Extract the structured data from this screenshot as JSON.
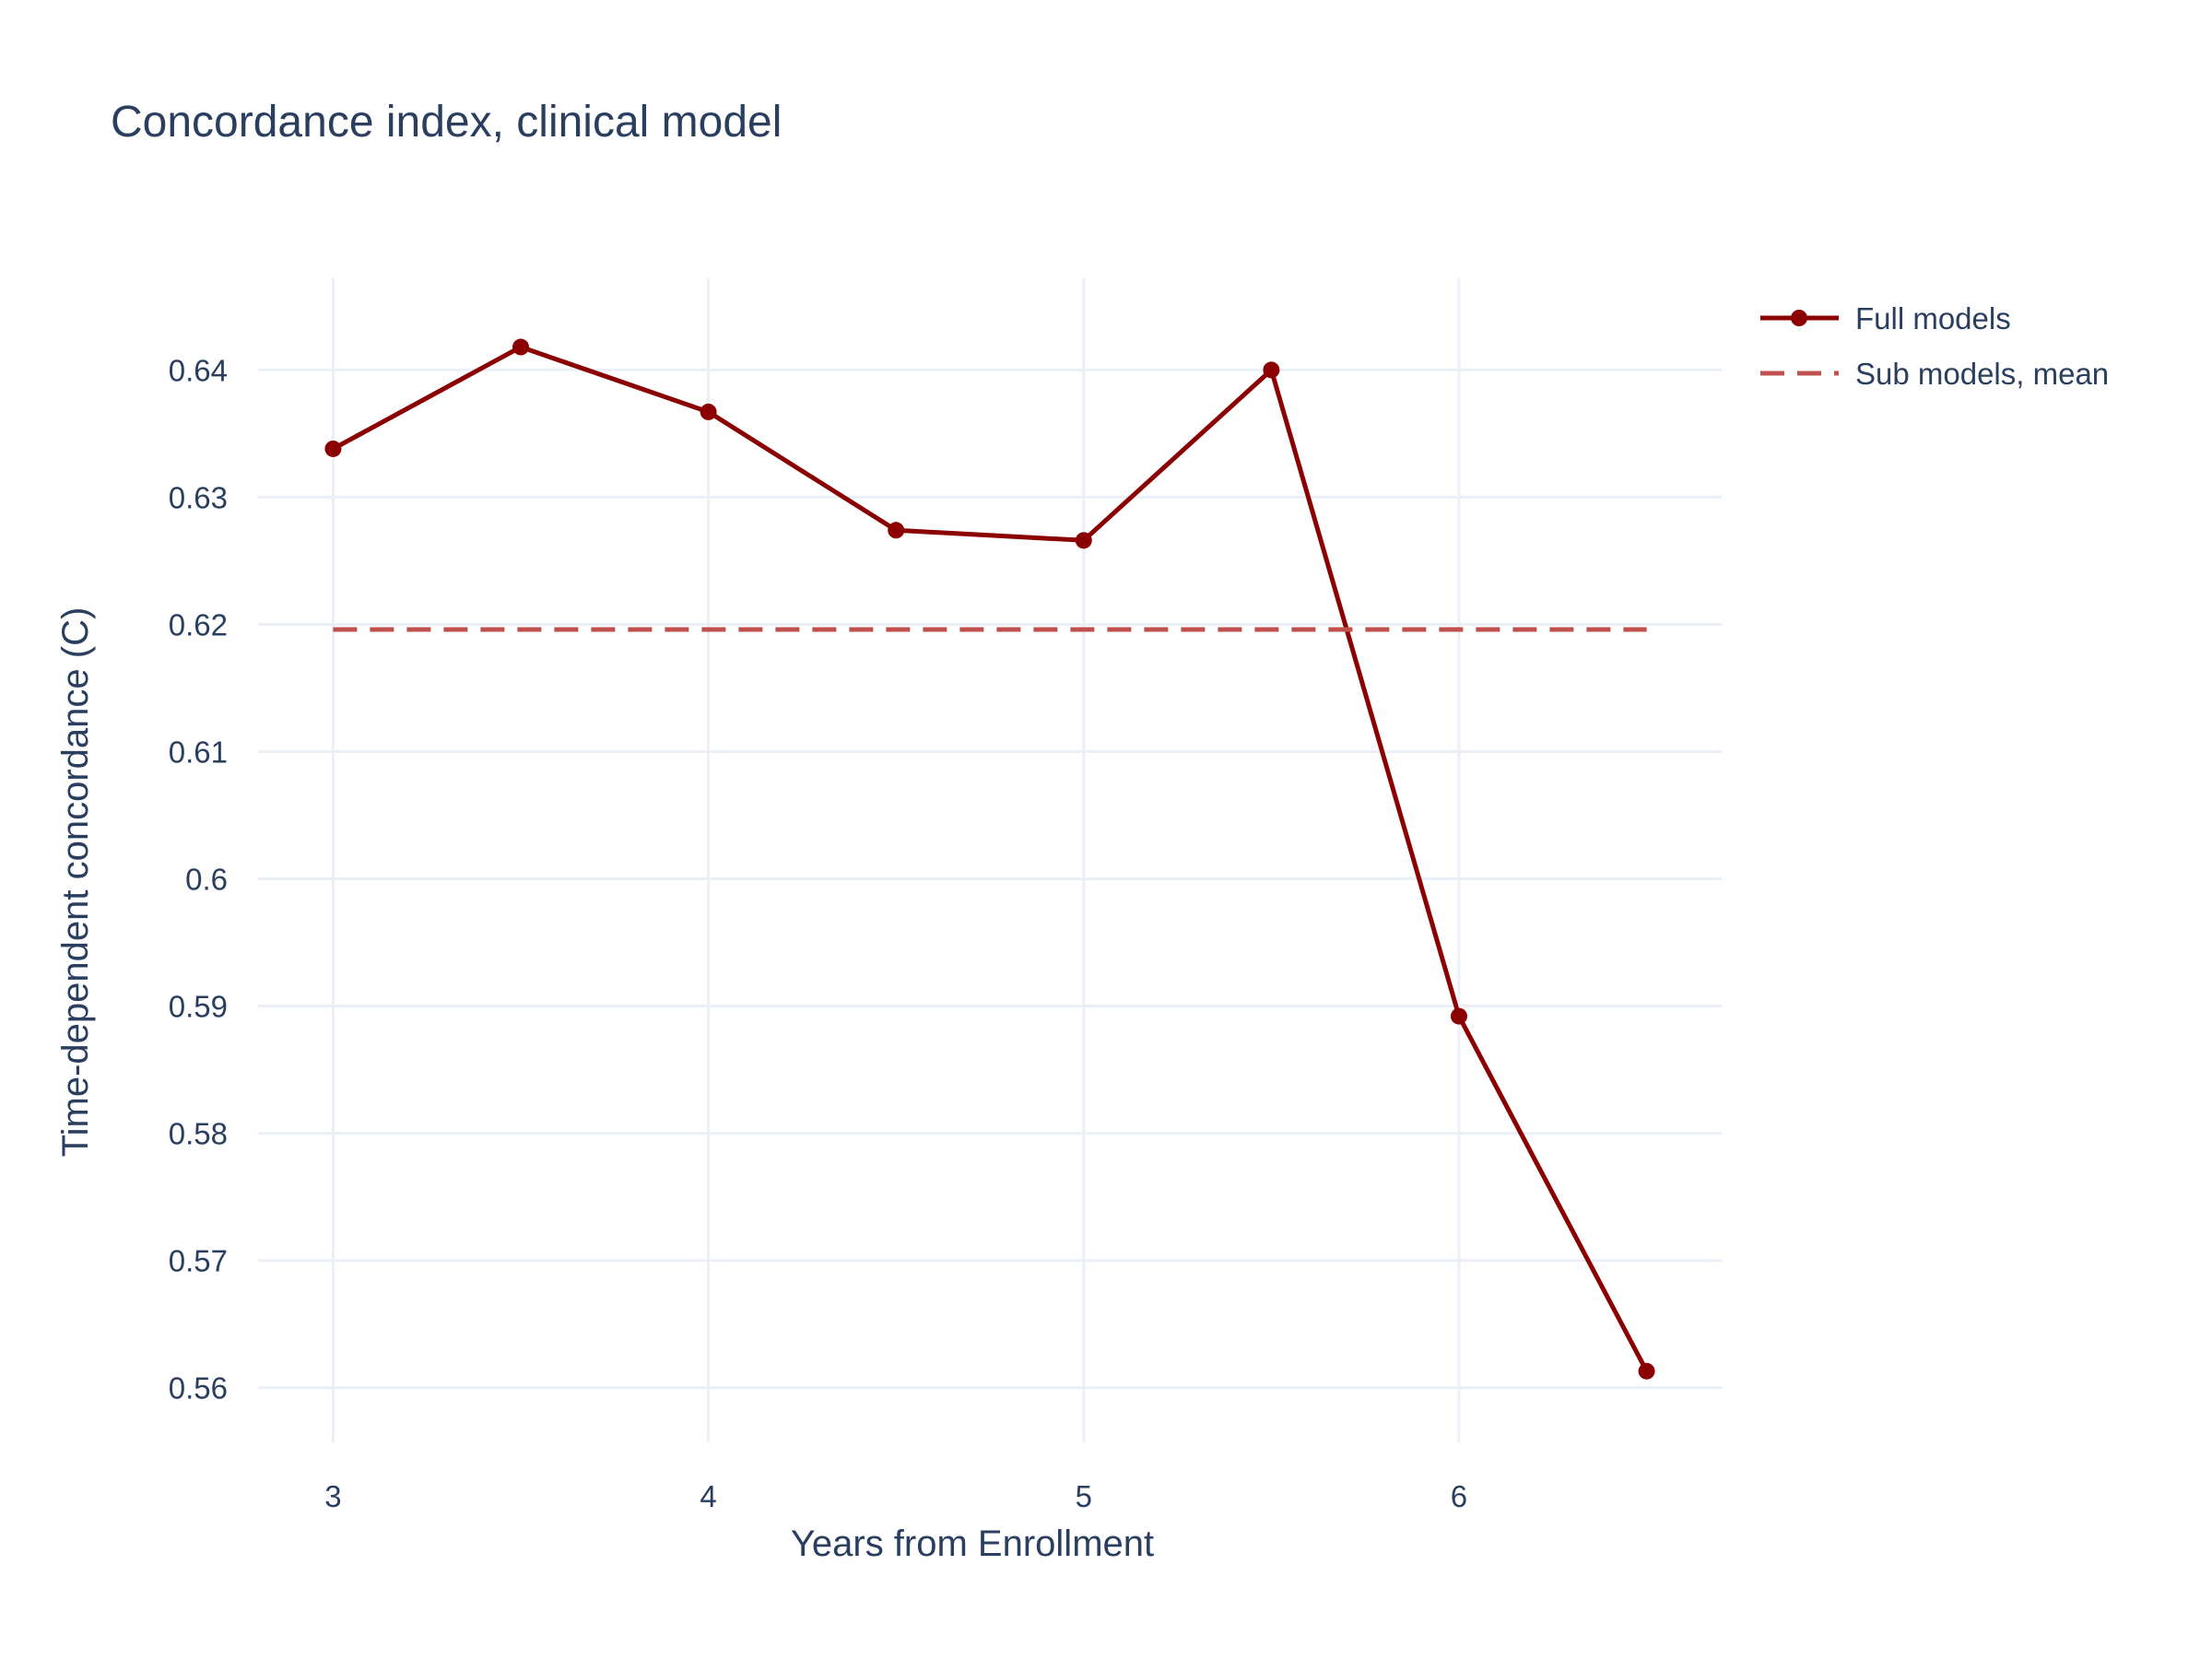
{
  "chart_data": {
    "type": "line",
    "title": "Concordance index, clinical model",
    "xlabel": "Years from Enrollment",
    "ylabel": "Time-dependent concordance (C)",
    "xlim": [
      2.8,
      6.7
    ],
    "ylim": [
      0.5557,
      0.6472
    ],
    "x_ticks": [
      3,
      4,
      5,
      6
    ],
    "x_tick_labels": [
      "3",
      "4",
      "5",
      "6"
    ],
    "y_ticks": [
      0.56,
      0.57,
      0.58,
      0.59,
      0.6,
      0.61,
      0.62,
      0.63,
      0.64
    ],
    "y_tick_labels": [
      "0.56",
      "0.57",
      "0.58",
      "0.59",
      "0.6",
      "0.61",
      "0.62",
      "0.63",
      "0.64"
    ],
    "grid": true,
    "legend_position": "top-right, outside plot",
    "series": [
      {
        "name": "Full models",
        "style": "solid line with markers",
        "color": "#8b0000",
        "x": [
          3,
          3.5,
          4,
          4.5,
          5,
          5.5,
          6,
          6.5
        ],
        "y": [
          0.6338,
          0.6418,
          0.6367,
          0.6274,
          0.6266,
          0.64,
          0.5892,
          0.5613
        ]
      },
      {
        "name": "Sub models, mean",
        "style": "dashed line",
        "color": "#c0504d",
        "x": [
          3,
          6.5
        ],
        "y": [
          0.6196,
          0.6196
        ]
      }
    ]
  }
}
